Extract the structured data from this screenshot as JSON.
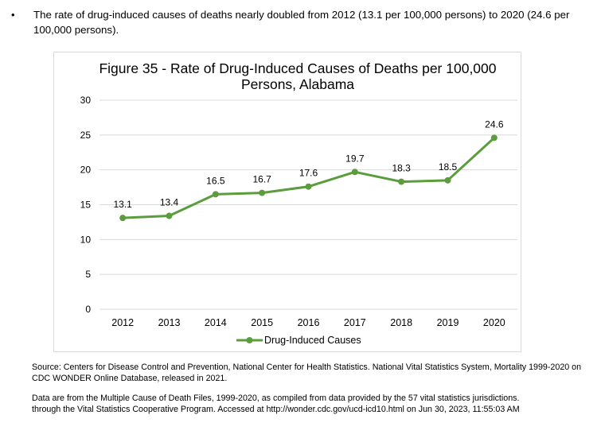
{
  "bullet": {
    "marker": "•",
    "text": "The rate of drug-induced causes of deaths nearly doubled from 2012 (13.1 per 100,000 persons) to 2020 (24.6 per 100,000 persons)."
  },
  "chart_data": {
    "type": "line",
    "title_line1": "Figure 35 - Rate of Drug-Induced Causes of Deaths per 100,000",
    "title_line2": "Persons, Alabama",
    "categories": [
      "2012",
      "2013",
      "2014",
      "2015",
      "2016",
      "2017",
      "2018",
      "2019",
      "2020"
    ],
    "series": [
      {
        "name": "Drug-Induced Causes",
        "values": [
          13.1,
          13.4,
          16.5,
          16.7,
          17.6,
          19.7,
          18.3,
          18.5,
          24.6
        ],
        "color": "#5b9c3c"
      }
    ],
    "yticks": [
      0,
      5,
      10,
      15,
      20,
      25,
      30
    ],
    "ylim": [
      0,
      30
    ],
    "grid": true,
    "legend": "bottom"
  },
  "source": {
    "text": "Source: Centers for Disease Control and Prevention, National Center for Health Statistics. National Vital Statistics System, Mortality 1999-2020 on CDC WONDER Online Database, released in 2021."
  },
  "note": {
    "line1": "Data are from the Multiple Cause of Death Files, 1999-2020, as compiled from data provided by the 57 vital statistics jurisdictions.",
    "line2": "through the Vital Statistics Cooperative Program. Accessed at http://wonder.cdc.gov/ucd-icd10.html on Jun 30, 2023, 11:55:03 AM"
  }
}
